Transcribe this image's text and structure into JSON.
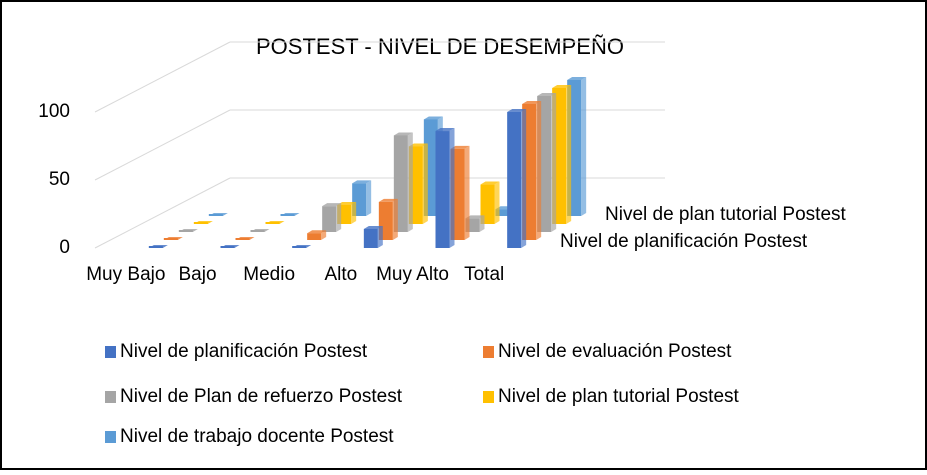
{
  "chart_data": {
    "type": "bar3d",
    "title": "POSTEST - NIVEL DE DESEMPEÑO",
    "categories": [
      "Muy Bajo",
      "Bajo",
      "Medio",
      "Alto",
      "Muy Alto",
      "Total"
    ],
    "series": [
      {
        "name": "Nivel de planificación Postest",
        "color": "#4472c4",
        "values": [
          0,
          0,
          0,
          14,
          86,
          100
        ]
      },
      {
        "name": "Nivel de evaluación Postest",
        "color": "#ed7d31",
        "values": [
          0,
          0,
          5,
          28,
          67,
          100
        ]
      },
      {
        "name": "Nivel de Plan de refuerzo Postest",
        "color": "#a5a5a5",
        "values": [
          0,
          0,
          19,
          71,
          10,
          100
        ]
      },
      {
        "name": "Nivel de plan tutorial Postest",
        "color": "#ffc000",
        "values": [
          0,
          0,
          14,
          57,
          29,
          100
        ]
      },
      {
        "name": "Nivel de trabajo docente Postest",
        "color": "#5b9bd5",
        "values": [
          0,
          0,
          24,
          71,
          5,
          100
        ]
      }
    ],
    "ylim": [
      0,
      150
    ],
    "yticks": [
      0,
      50,
      100
    ],
    "grid": true
  }
}
